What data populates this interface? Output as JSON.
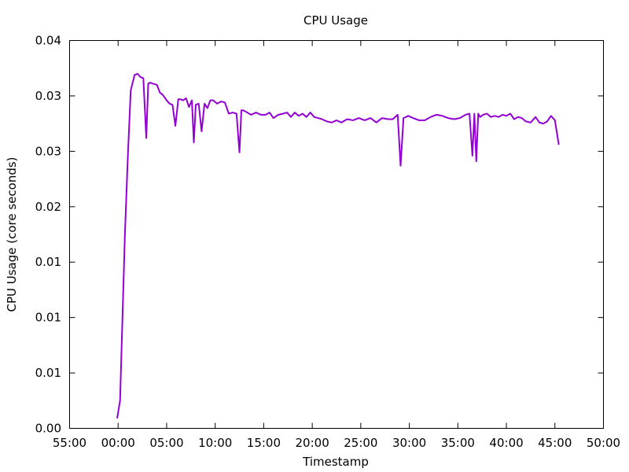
{
  "chart_data": {
    "type": "line",
    "title": "CPU Usage",
    "xlabel": "Timestamp",
    "ylabel": "CPU Usage (core seconds)",
    "x_ticks": [
      {
        "value": -5,
        "label": "55:00"
      },
      {
        "value": 0,
        "label": "00:00"
      },
      {
        "value": 5,
        "label": "05:00"
      },
      {
        "value": 10,
        "label": "10:00"
      },
      {
        "value": 15,
        "label": "15:00"
      },
      {
        "value": 20,
        "label": "20:00"
      },
      {
        "value": 25,
        "label": "25:00"
      },
      {
        "value": 30,
        "label": "30:00"
      },
      {
        "value": 35,
        "label": "35:00"
      },
      {
        "value": 40,
        "label": "40:00"
      },
      {
        "value": 45,
        "label": "45:00"
      },
      {
        "value": 50,
        "label": "50:00"
      }
    ],
    "y_ticks": [
      {
        "value": 0.0,
        "label": "0.00"
      },
      {
        "value": 0.005,
        "label": "0.01"
      },
      {
        "value": 0.01,
        "label": "0.01"
      },
      {
        "value": 0.015,
        "label": "0.01"
      },
      {
        "value": 0.02,
        "label": "0.02"
      },
      {
        "value": 0.025,
        "label": "0.03"
      },
      {
        "value": 0.03,
        "label": "0.03"
      },
      {
        "value": 0.035,
        "label": "0.04"
      }
    ],
    "xlim": [
      -5,
      50
    ],
    "ylim": [
      0,
      0.035
    ],
    "grid": false,
    "color": "#9400d3",
    "series": [
      {
        "x": [
          -0.1,
          0.2,
          0.4,
          0.7,
          1.0,
          1.3,
          1.7,
          2.0,
          2.3,
          2.6,
          2.9,
          3.1,
          3.3,
          3.6,
          4.0,
          4.3,
          4.6,
          5.0,
          5.3,
          5.6,
          5.9,
          6.2,
          6.4,
          6.7,
          7.0,
          7.3,
          7.6,
          7.8,
          8.0,
          8.3,
          8.6,
          8.9,
          9.2,
          9.5,
          9.8,
          10.2,
          10.6,
          11.0,
          11.4,
          11.8,
          12.2,
          12.5,
          12.7,
          12.9,
          13.3,
          13.7,
          14.2,
          14.7,
          15.2,
          15.6,
          16.0,
          16.5,
          17.0,
          17.4,
          17.8,
          18.2,
          18.6,
          19.0,
          19.4,
          19.8,
          20.2,
          20.6,
          21.0,
          21.5,
          22.0,
          22.5,
          23.0,
          23.6,
          24.2,
          24.8,
          25.4,
          26.0,
          26.6,
          27.2,
          27.8,
          28.3,
          28.8,
          29.1,
          29.4,
          29.9,
          30.4,
          31.0,
          31.6,
          32.2,
          32.8,
          33.4,
          34.0,
          34.6,
          35.2,
          35.8,
          36.2,
          36.5,
          36.7,
          36.9,
          37.1,
          37.3,
          37.6,
          38.0,
          38.4,
          38.8,
          39.2,
          39.6,
          40.0,
          40.4,
          40.8,
          41.2,
          41.6,
          42.0,
          42.5,
          43.0,
          43.4,
          43.8,
          44.2,
          44.6,
          45.0,
          45.4
        ],
        "y": [
          0.0009,
          0.0025,
          0.0085,
          0.0175,
          0.0245,
          0.0305,
          0.0319,
          0.032,
          0.0317,
          0.0316,
          0.0262,
          0.0311,
          0.0312,
          0.0311,
          0.031,
          0.0303,
          0.0301,
          0.0296,
          0.0293,
          0.0292,
          0.0273,
          0.0297,
          0.0297,
          0.0296,
          0.0298,
          0.029,
          0.0296,
          0.0258,
          0.0292,
          0.0293,
          0.0268,
          0.0293,
          0.0289,
          0.0296,
          0.0296,
          0.0293,
          0.0295,
          0.0294,
          0.0284,
          0.0285,
          0.0284,
          0.0249,
          0.0287,
          0.0287,
          0.0285,
          0.0283,
          0.0285,
          0.0283,
          0.0283,
          0.0285,
          0.028,
          0.0283,
          0.0284,
          0.0285,
          0.0281,
          0.0285,
          0.0282,
          0.0284,
          0.0281,
          0.0285,
          0.0281,
          0.028,
          0.0279,
          0.0277,
          0.0276,
          0.0278,
          0.0276,
          0.0279,
          0.0278,
          0.028,
          0.0278,
          0.028,
          0.0276,
          0.028,
          0.0279,
          0.0279,
          0.0283,
          0.0237,
          0.028,
          0.0282,
          0.028,
          0.0278,
          0.0278,
          0.0281,
          0.0283,
          0.0282,
          0.028,
          0.0279,
          0.028,
          0.0283,
          0.0284,
          0.0246,
          0.0284,
          0.0241,
          0.0284,
          0.0281,
          0.0283,
          0.0284,
          0.0281,
          0.0282,
          0.0281,
          0.0283,
          0.0282,
          0.0284,
          0.0279,
          0.0281,
          0.028,
          0.0277,
          0.0276,
          0.0281,
          0.0276,
          0.0275,
          0.0277,
          0.0282,
          0.0278,
          0.0256
        ]
      }
    ]
  }
}
